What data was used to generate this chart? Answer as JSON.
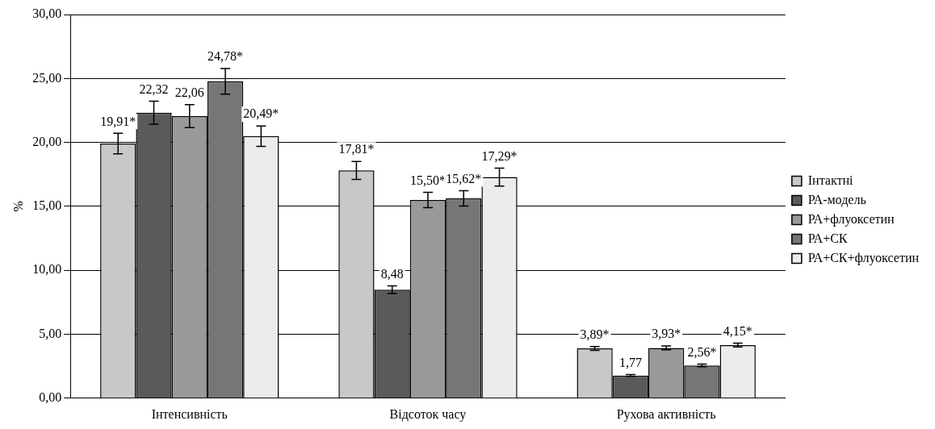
{
  "chart_data": {
    "type": "bar",
    "ylabel": "%",
    "categories": [
      "Інтенсивність",
      "Відсоток часу",
      "Рухова активність"
    ],
    "series": [
      {
        "name": "Інтактні",
        "color": "#c8c8c8",
        "values": [
          19.91,
          17.81,
          3.89
        ],
        "errors": [
          0.8,
          0.7,
          0.15
        ],
        "value_labels": [
          "19,91*",
          "17,81*",
          "3,89*"
        ]
      },
      {
        "name": "РА-модель",
        "color": "#5a5a5a",
        "values": [
          22.32,
          8.48,
          1.77
        ],
        "errors": [
          0.9,
          0.3,
          0.07
        ],
        "value_labels": [
          "22,32",
          "8,48",
          "1,77"
        ]
      },
      {
        "name": "РА+флуоксетин",
        "color": "#999999",
        "values": [
          22.06,
          15.5,
          3.93
        ],
        "errors": [
          0.9,
          0.6,
          0.15
        ],
        "value_labels": [
          "22,06",
          "15,50*",
          "3,93*"
        ]
      },
      {
        "name": "РА+СК",
        "color": "#767676",
        "values": [
          24.78,
          15.62,
          2.56
        ],
        "errors": [
          1.0,
          0.6,
          0.1
        ],
        "value_labels": [
          "24,78*",
          "15,62*",
          "2,56*"
        ]
      },
      {
        "name": "РА+СК+флуоксетин",
        "color": "#ececec",
        "values": [
          20.49,
          17.29,
          4.15
        ],
        "errors": [
          0.8,
          0.7,
          0.15
        ],
        "value_labels": [
          "20,49*",
          "17,29*",
          "4,15*"
        ]
      }
    ],
    "ylim": [
      0,
      30
    ],
    "yticks": [
      {
        "value": 0,
        "label": "0,00"
      },
      {
        "value": 5,
        "label": "5,00"
      },
      {
        "value": 10,
        "label": "10,00"
      },
      {
        "value": 15,
        "label": "15,00"
      },
      {
        "value": 20,
        "label": "20,00"
      },
      {
        "value": 25,
        "label": "25,00"
      },
      {
        "value": 30,
        "label": "30,00"
      }
    ],
    "grid": "y",
    "legend": "right"
  }
}
